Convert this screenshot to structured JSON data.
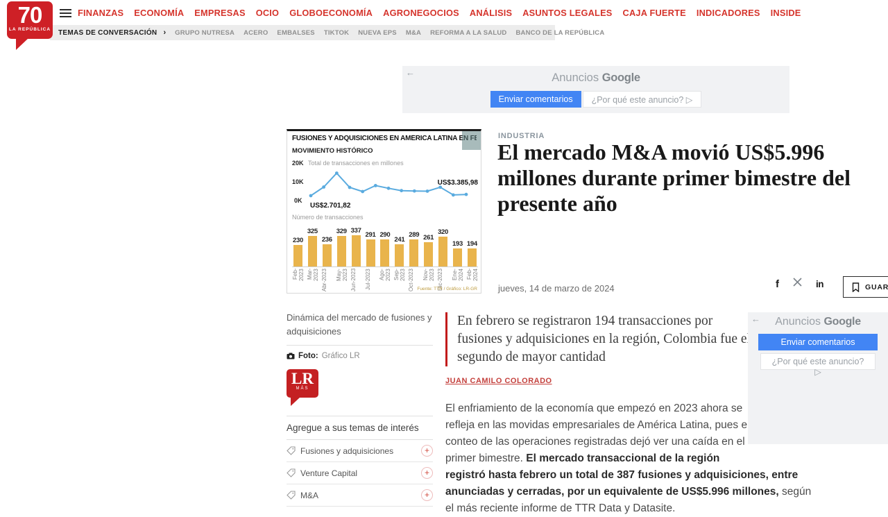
{
  "brand": {
    "logo_number": "70",
    "logo_name": "LA REPÚBLICA"
  },
  "nav": {
    "items": [
      "FINANZAS",
      "ECONOMÍA",
      "EMPRESAS",
      "OCIO",
      "GLOBOECONOMÍA",
      "AGRONEGOCIOS",
      "ANÁLISIS",
      "ASUNTOS LEGALES",
      "CAJA FUERTE",
      "INDICADORES",
      "INSIDE"
    ]
  },
  "topics_bar": {
    "label": "TEMAS DE CONVERSACIÓN",
    "chevron": "›",
    "items": [
      "GRUPO NUTRESA",
      "ACERO",
      "EMBALSES",
      "TIKTOK",
      "NUEVA EPS",
      "M&A",
      "REFORMA A LA SALUD",
      "BANCO DE LA REPÚBLICA"
    ]
  },
  "ad_top": {
    "back_arrow": "←",
    "title_prefix": "Anuncios",
    "title_brand": "Google",
    "feedback_button": "Enviar comentarios",
    "why_button": "¿Por qué este anuncio? ▷"
  },
  "ad_side": {
    "back_arrow": "←",
    "title_prefix": "Anuncios",
    "title_brand": "Google",
    "feedback_button": "Enviar comentarios",
    "why_button": "¿Por qué este anuncio? ▷"
  },
  "article": {
    "category": "INDUSTRIA",
    "title": "El mercado M&A movió US$5.996 millones durante primer bimestre del presente año",
    "date": "jueves, 14 de marzo de 2024",
    "social": {
      "facebook": "f",
      "x": "X",
      "linkedin": "in"
    },
    "save_button": "GUARDAR",
    "lead": "En febrero se registraron 194 transacciones por fusiones y adquisiciones en la región, Colombia fue el segundo de mayor cantidad",
    "author": "JUAN CAMILO COLORADO",
    "body": {
      "part1": "El enfriamiento de la economía que empezó en 2023 ahora se refleja en las movidas empresariales de América Latina, pues el conteo de las operaciones registradas dejó ver una caída en el primer bimestre. ",
      "bold": "El mercado transaccional de la región registró hasta febrero un total de 387 fusiones y adquisiciones, entre anunciadas y cerradas, por un equivalente de US$5.996 millones,",
      "part2": " según el más reciente informe de TTR Data y Datasite."
    }
  },
  "figure": {
    "caption": "Dinámica del mercado de fusiones y adquisiciones",
    "photo_label": "Foto:",
    "photo_credit": "Gráfico LR",
    "lr_mas_logo": {
      "lr": "LR",
      "mas": "MÁS"
    }
  },
  "interests": {
    "heading": "Agregue a sus temas de interés",
    "topics": [
      "Fusiones y adquisiciones",
      "Venture Capital",
      "M&A"
    ],
    "add_glyph": "+"
  },
  "colors": {
    "brand_red": "#ce2026",
    "nav_red": "#d5342c",
    "google_blue": "#4285f4",
    "chart_line_blue": "#5aabdf",
    "chart_bar_gold": "#e9b44c"
  },
  "chart_data": [
    {
      "type": "line",
      "title": "FUSIONES Y ADQUISICIONES EN AMÉRICA LATINA EN FEBRERO",
      "subtitle": "MOVIMIENTO HISTÓRICO",
      "series_label": "Total de transacciones en millones",
      "x": [
        "Feb-2023",
        "Mar-2023",
        "Abr-2023",
        "May-2023",
        "Jun-2023",
        "Jul-2023",
        "Ago-2023",
        "Sep-2023",
        "Oct-2023",
        "Nov-2023",
        "Dic-2023",
        "Ene-2024",
        "Feb-2024"
      ],
      "values_k": [
        2.7,
        7.5,
        15.2,
        7.3,
        5.0,
        8.3,
        6.8,
        5.5,
        5.3,
        5.2,
        7.4,
        3.1,
        3.4
      ],
      "yticks": [
        "20K",
        "10K",
        "0K"
      ],
      "ylim": [
        0,
        20
      ],
      "first_point_label": "US$2.701,82",
      "last_point_label": "US$3.385,98",
      "line_color": "#5aabdf"
    },
    {
      "type": "bar",
      "title": "Número de transacciones",
      "categories": [
        "Feb-2023",
        "Mar-2023",
        "Abr-2023",
        "May-2023",
        "Jun-2023",
        "Jul-2023",
        "Ago-2023",
        "Sep-2023",
        "Oct-2023",
        "Nov-2023",
        "Dic-2023",
        "Ene-2024",
        "Feb-2024"
      ],
      "values": [
        230,
        325,
        236,
        329,
        337,
        291,
        290,
        241,
        289,
        261,
        320,
        193,
        194
      ],
      "bar_color": "#e9b44c",
      "source": "Fuente: TTR / Gráfico: LR-GR"
    }
  ]
}
